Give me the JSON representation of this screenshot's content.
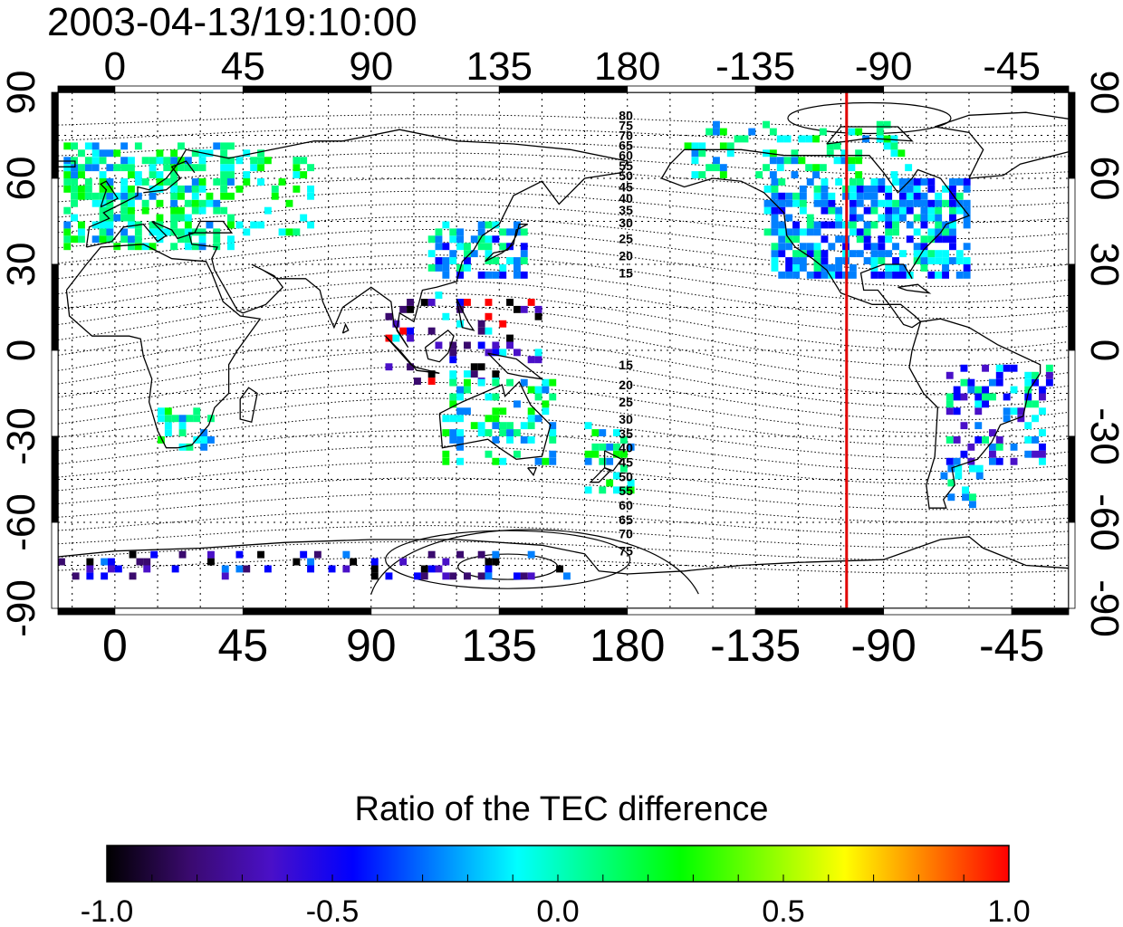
{
  "title": "2003-04-13/19:10:00",
  "map": {
    "x_ticks": [
      "0",
      "45",
      "90",
      "135",
      "180",
      "-135",
      "-90",
      "-45"
    ],
    "x_tick_lon": [
      0,
      45,
      90,
      135,
      180,
      225,
      270,
      315
    ],
    "lon_range": [
      -20,
      335
    ],
    "y_ticks": [
      "90",
      "60",
      "30",
      "0",
      "-30",
      "-60",
      "-90"
    ],
    "y_tick_lat": [
      90,
      60,
      30,
      0,
      -30,
      -60,
      -90
    ],
    "lat_range": [
      -90,
      90
    ],
    "grid_lon": [
      -15,
      0,
      15,
      30,
      45,
      60,
      75,
      90,
      105,
      120,
      135,
      150,
      165,
      180,
      195,
      210,
      225,
      240,
      255,
      270,
      285,
      300,
      315,
      330
    ],
    "grid_lat": [
      -75,
      -60,
      -45,
      -30,
      -15,
      0,
      15,
      30,
      45,
      60,
      75
    ],
    "terminator_lon": 257,
    "terminator_color": "#e00000",
    "contour_labels": [
      "80",
      "75",
      "70",
      "65",
      "60",
      "55",
      "50",
      "45",
      "40",
      "35",
      "30",
      "25",
      "20",
      "15",
      "15",
      "20",
      "25",
      "30",
      "35",
      "40",
      "45",
      "50",
      "55",
      "60",
      "65",
      "70",
      "75"
    ],
    "contour_label_lon": 177,
    "contour_label_lat": [
      82,
      78.5,
      75,
      71.5,
      68,
      64.5,
      61,
      57,
      53,
      49,
      44.5,
      39,
      33,
      27,
      -5,
      -12,
      -18,
      -24,
      -29,
      -34,
      -39,
      -44,
      -49,
      -54,
      -59,
      -64,
      -70
    ]
  },
  "colorbar": {
    "title": "Ratio of the TEC difference",
    "tick_labels": [
      "-1.0",
      "-0.5",
      "0.0",
      "0.5",
      "1.0"
    ],
    "tick_values": [
      -1.0,
      -0.5,
      0.0,
      0.5,
      1.0
    ],
    "range": [
      -1.0,
      1.0
    ],
    "colors": [
      "#000000",
      "#3a0a6e",
      "#4a10c8",
      "#0000ff",
      "#0080ff",
      "#00ffff",
      "#00ff80",
      "#00ff00",
      "#80ff00",
      "#ffff00",
      "#ff8000",
      "#ff0000"
    ]
  }
}
